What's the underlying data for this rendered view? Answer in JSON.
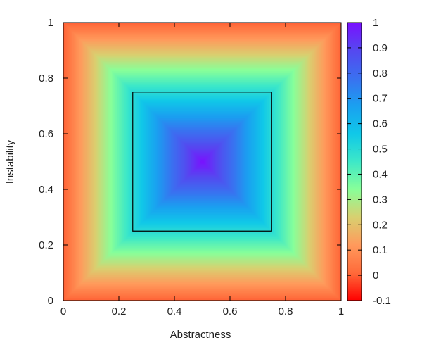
{
  "chart_data": {
    "type": "heatmap",
    "title": "",
    "xlabel": "Abstractness",
    "ylabel": "Instability",
    "xlim": [
      0,
      1
    ],
    "ylim": [
      0,
      1
    ],
    "x_ticks": [
      "0",
      "0.2",
      "0.4",
      "0.6",
      "0.8",
      "1"
    ],
    "y_ticks": [
      "0",
      "0.2",
      "0.4",
      "0.6",
      "0.8",
      "1"
    ],
    "colorbar": {
      "range": [
        -0.1,
        1
      ],
      "ticks": [
        "-0.1",
        "0",
        "0.1",
        "0.2",
        "0.3",
        "0.4",
        "0.5",
        "0.6",
        "0.7",
        "0.8",
        "0.9",
        "1"
      ],
      "palette": "rainbow",
      "colors": [
        "#ff0000",
        "#ff6a3a",
        "#ff9a5c",
        "#d8d070",
        "#88ff99",
        "#3de8c8",
        "#10c8e8",
        "#1aa0f0",
        "#3a70f0",
        "#5548f0",
        "#7a10ff"
      ]
    },
    "surface": {
      "function": "1 - 2*max(|x-0.5|, |y-0.5|)",
      "center": [
        0.5,
        0.5
      ],
      "peak": 1,
      "corner_value": 0
    },
    "contour": {
      "level": 0.5,
      "color": "#000000"
    },
    "grid": false
  }
}
